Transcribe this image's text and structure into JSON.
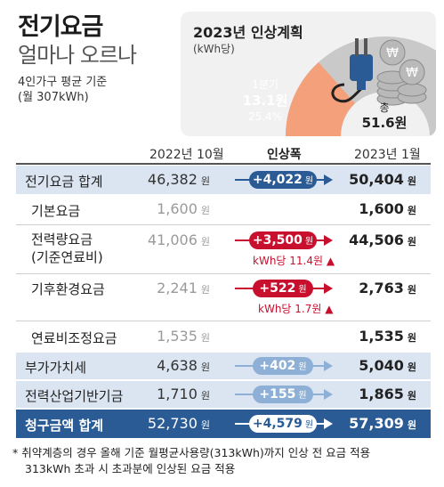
{
  "header": {
    "title": "전기요금",
    "subtitle": "얼마나 오르나",
    "basis_line1": "4인가구 평균 기준",
    "basis_line2": "(월 307kWh)"
  },
  "plan": {
    "title": "2023년 인상계획",
    "unit": "(kWh당)",
    "q1_label": "1분기",
    "q1_amount": "13.1원",
    "q1_share": "25.4%",
    "total_label": "총",
    "total_amount": "51.6원",
    "q1_share_value": 25.4,
    "icon": "electric-plug-and-coins-icon"
  },
  "columns": {
    "before": "2022년 10월",
    "change": "인상폭",
    "after": "2023년 1월"
  },
  "won": "원",
  "rows": [
    {
      "label": "전기요금 합계",
      "before": "46,382",
      "change": "+4,022",
      "after": "50,404"
    },
    {
      "label": "기본요금",
      "before": "1,600",
      "after": "1,600"
    },
    {
      "label_line1": "전력량요금",
      "label_line2": "(기준연료비)",
      "before": "41,006",
      "change": "+3,500",
      "after": "44,506",
      "note": "kWh당 11.4원"
    },
    {
      "label": "기후환경요금",
      "before": "2,241",
      "change": "+522",
      "after": "2,763",
      "note": "kWh당 1.7원"
    },
    {
      "label": "연료비조정요금",
      "before": "1,535",
      "after": "1,535"
    },
    {
      "label": "부가가치세",
      "before": "4,638",
      "change": "+402",
      "after": "5,040"
    },
    {
      "label": "전력산업기반기금",
      "before": "1,710",
      "change": "+155",
      "after": "1,865"
    },
    {
      "label": "청구금액 합계",
      "before": "52,730",
      "change": "+4,579",
      "after": "57,309"
    }
  ],
  "footnote": {
    "line1": "* 취약계층의 경우 올해 기준 월평균사용량(313kWh)까지 인상 전 요금 적용",
    "line2": "313kWh 초과 시 초과분에 인상된 요금 적용"
  },
  "colors": {
    "dark_blue": "#2a5b94",
    "light_blue_row": "#dbe5f1",
    "light_blue_pill": "#8fb0d6",
    "red": "#c8102e",
    "orange_segment": "#f4a07a",
    "gray_ring": "#c9c9c9"
  }
}
